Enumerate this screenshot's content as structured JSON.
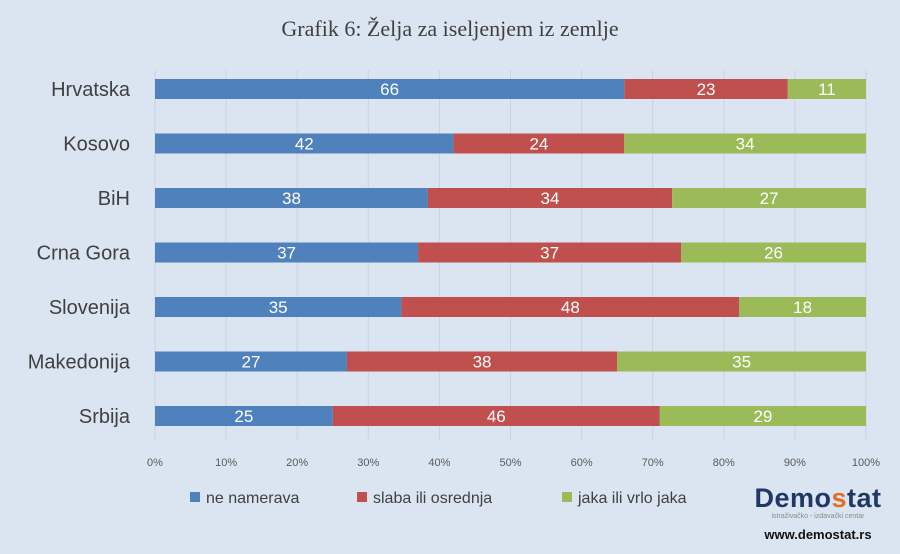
{
  "chart_data": {
    "type": "bar",
    "orientation": "horizontal",
    "stacked": "percent",
    "title": "Grafik 6: Želja za iseljenjem iz zemlje",
    "categories": [
      "Hrvatska",
      "Kosovo",
      "BiH",
      "Crna Gora",
      "Slovenija",
      "Makedonija",
      "Srbija"
    ],
    "series": [
      {
        "name": "ne namerava",
        "color": "#4f81bd",
        "values": [
          66,
          42,
          38,
          37,
          35,
          27,
          25
        ]
      },
      {
        "name": "slaba ili osrednja",
        "color": "#c0504d",
        "values": [
          23,
          24,
          34,
          37,
          48,
          38,
          46
        ]
      },
      {
        "name": "jaka ili vrlo jaka",
        "color": "#9bbb59",
        "values": [
          11,
          34,
          27,
          26,
          18,
          35,
          29
        ]
      }
    ],
    "xticks": [
      "0%",
      "10%",
      "20%",
      "30%",
      "40%",
      "50%",
      "60%",
      "70%",
      "80%",
      "90%",
      "100%"
    ],
    "xlim": [
      0,
      100
    ],
    "grid": true,
    "legend": "bottom"
  },
  "logo": {
    "name_start": "Demo",
    "name_s": "s",
    "name_end": "tat",
    "subtitle": "istraživačko - izdavački centar",
    "url": "www.demostat.rs"
  }
}
